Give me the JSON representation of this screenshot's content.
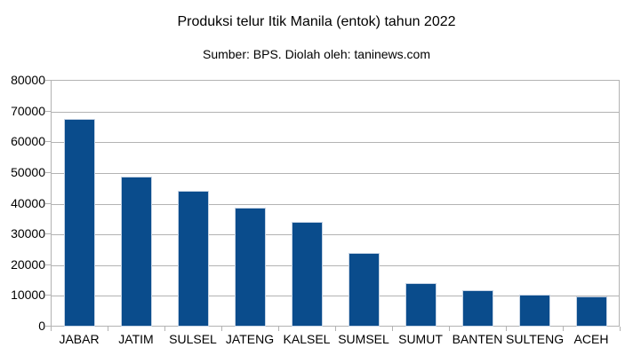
{
  "chart_data": {
    "type": "bar",
    "title": "Produksi telur Itik Manila (entok) tahun 2022",
    "subtitle": "Sumber: BPS. Diolah oleh: taninews.com",
    "categories": [
      "JABAR",
      "JATIM",
      "SULSEL",
      "JATENG",
      "KALSEL",
      "SUMSEL",
      "SUMUT",
      "BANTEN",
      "SULTENG",
      "ACEH"
    ],
    "values": [
      67000,
      48300,
      43600,
      38000,
      33500,
      23400,
      13500,
      11300,
      9700,
      9300
    ],
    "xlabel": "",
    "ylabel": "",
    "ylim": [
      0,
      80000
    ],
    "ytick_step": 10000,
    "ytick_labels": [
      "0",
      "10000",
      "20000",
      "30000",
      "40000",
      "50000",
      "60000",
      "70000",
      "80000"
    ],
    "grid": true,
    "legend": "none",
    "colors": {
      "bar": "#0a4c8c",
      "bar_edge": "#c5d3e4",
      "grid": "#b3b3b3",
      "axis": "#b3b3b3",
      "text": "#000000",
      "background": "#ffffff"
    }
  }
}
